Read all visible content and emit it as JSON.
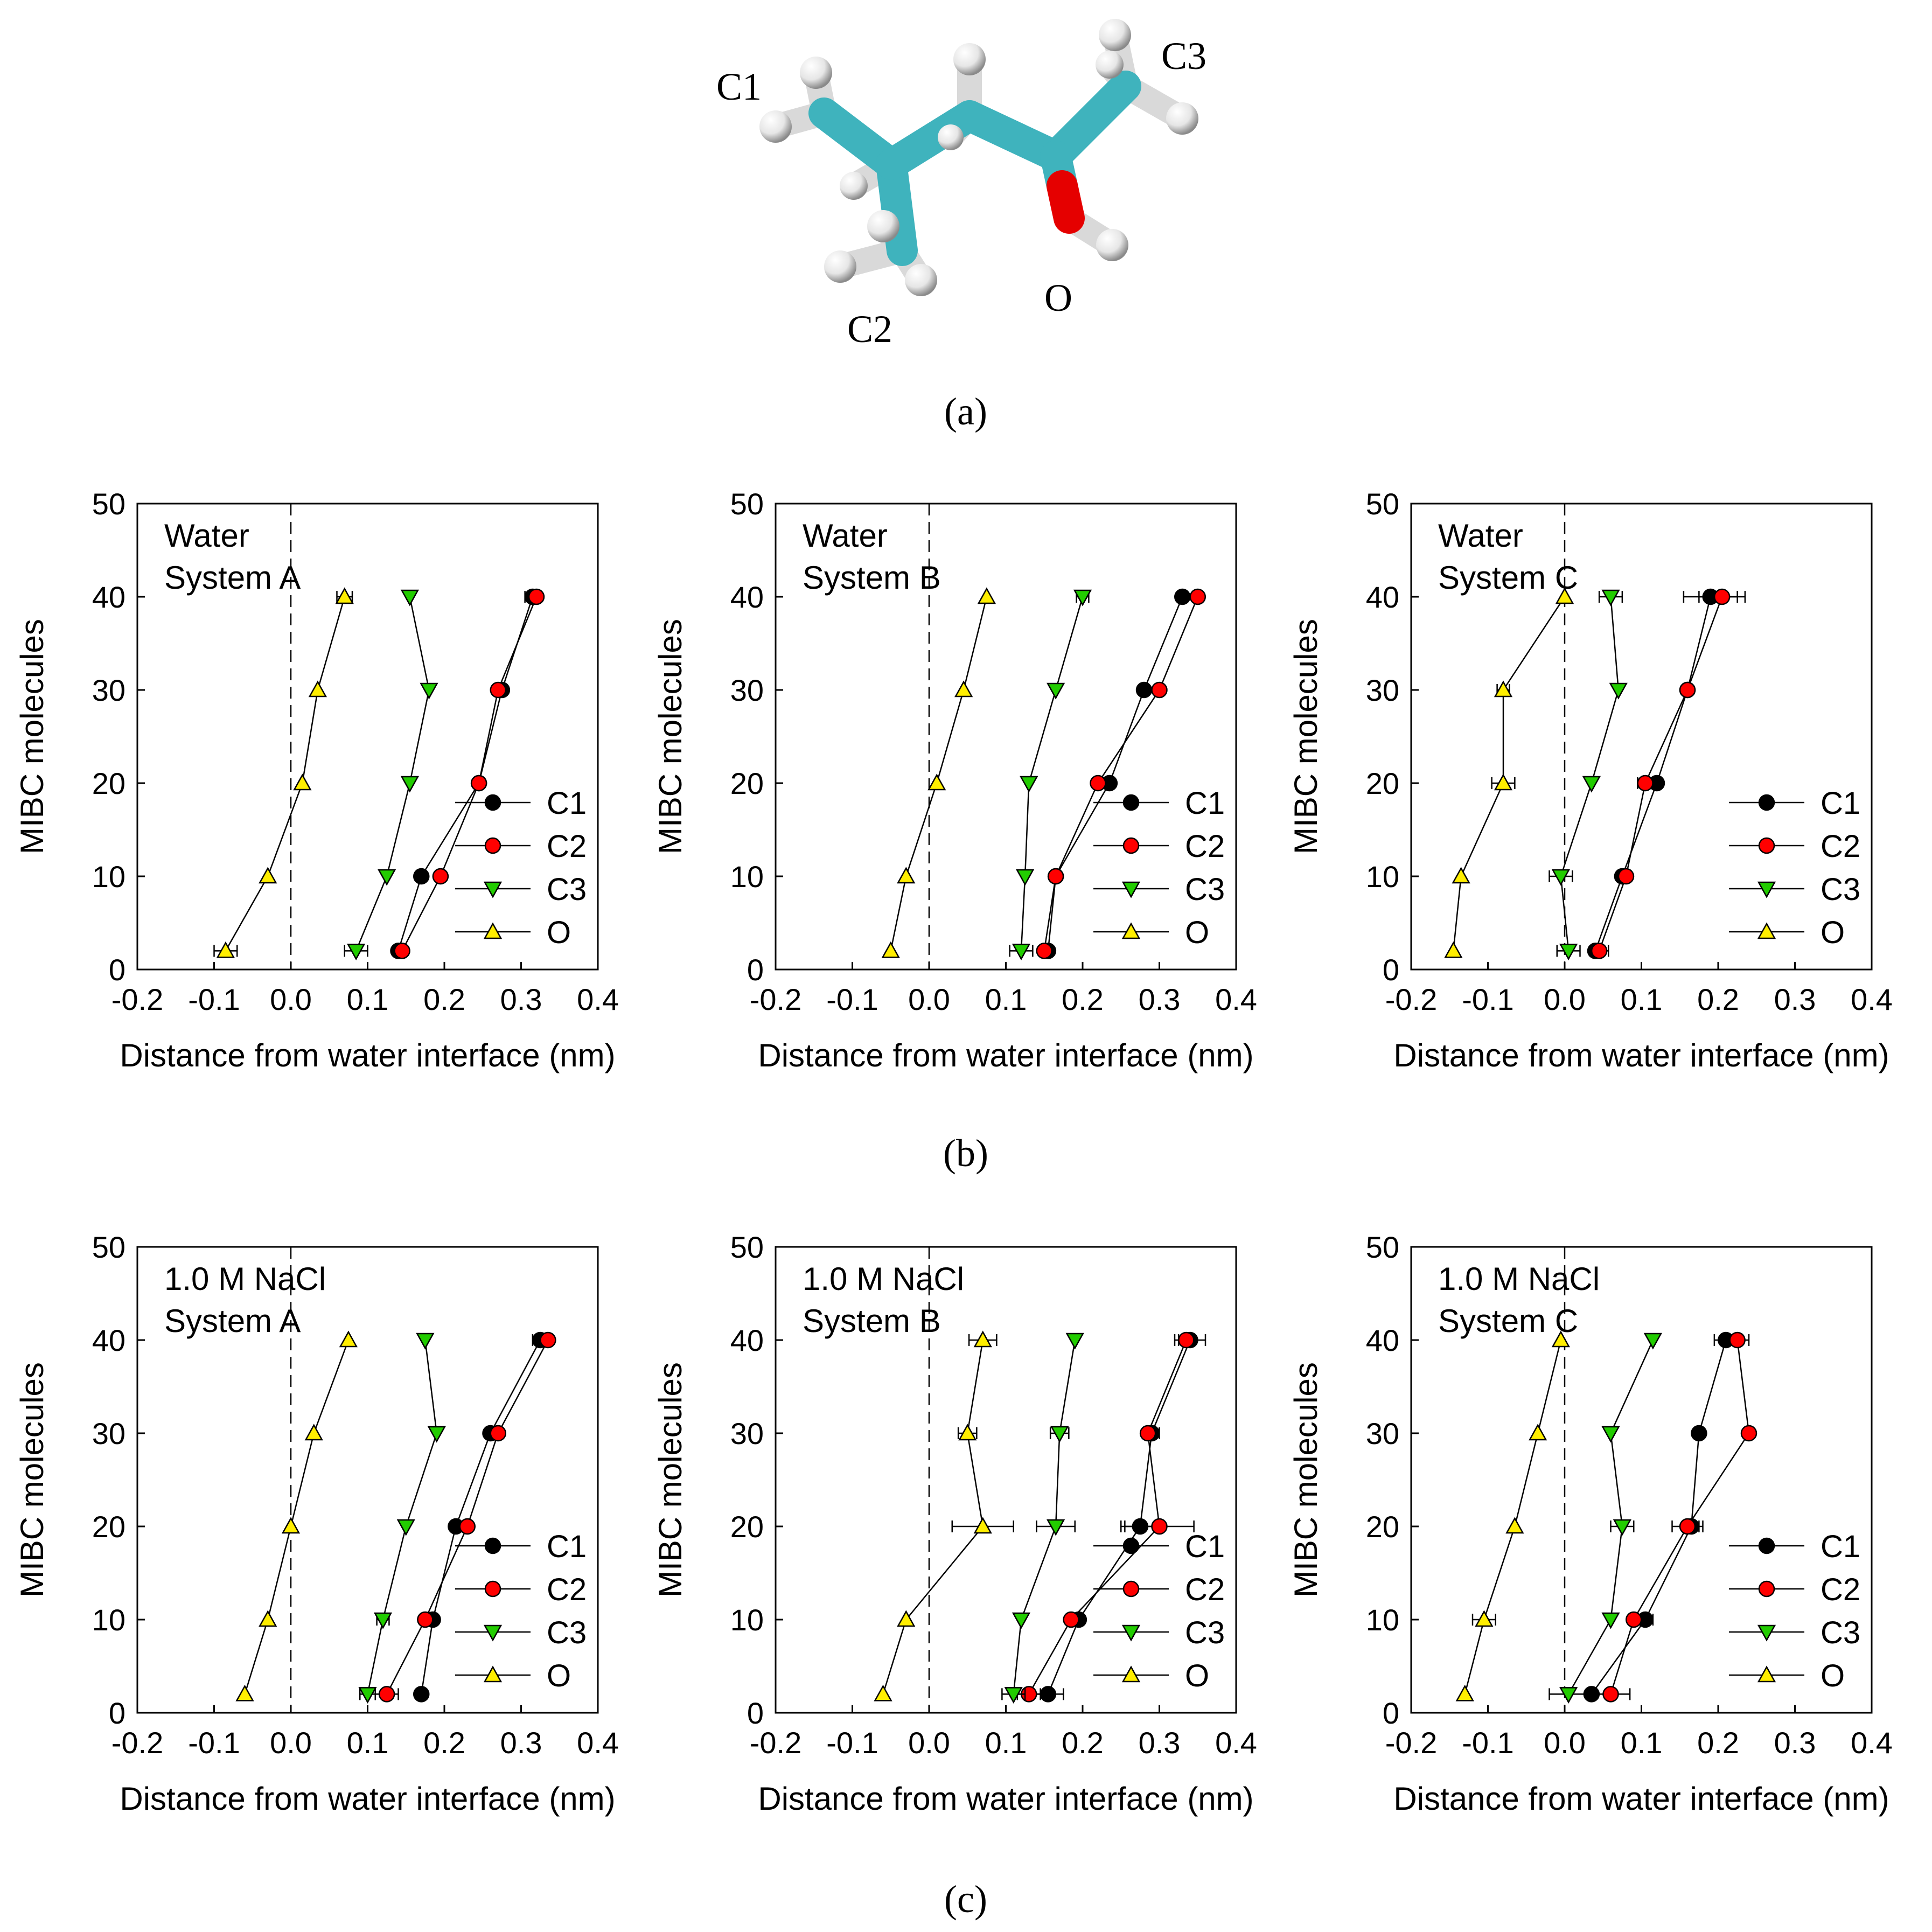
{
  "molecule": {
    "labels": [
      "C1",
      "C2",
      "C3",
      "O"
    ]
  },
  "captions": [
    "(a)",
    "(b)",
    "(c)"
  ],
  "legend": [
    "C1",
    "C2",
    "C3",
    "O"
  ],
  "colors": {
    "C1": "#000000",
    "C2": "#ff0000",
    "C3": "#22cc00",
    "O": "#ffee00",
    "carbon": "#3fb3bd",
    "hydrogen": "#e6e6e6",
    "oxygen": "#e50000"
  },
  "chart_data": [
    {
      "type": "line",
      "panel": "b",
      "annotation": [
        "Water",
        "System A"
      ],
      "xlabel": "Distance from water interface (nm)",
      "ylabel": "MIBC molecules",
      "xlim": [
        -0.2,
        0.4
      ],
      "ylim": [
        0,
        50
      ],
      "xticks": [
        "-0.2",
        "-0.1",
        "0.0",
        "0.1",
        "0.2",
        "0.3",
        "0.4"
      ],
      "yticks": [
        "0",
        "10",
        "20",
        "30",
        "40",
        "50"
      ],
      "series": [
        {
          "name": "C1",
          "points": [
            [
              0.14,
              2
            ],
            [
              0.17,
              10
            ],
            [
              0.245,
              20
            ],
            [
              0.275,
              30
            ],
            [
              0.315,
              40
            ]
          ],
          "err": [
            0,
            0,
            0,
            0,
            0.01
          ]
        },
        {
          "name": "C2",
          "points": [
            [
              0.145,
              2
            ],
            [
              0.195,
              10
            ],
            [
              0.245,
              20
            ],
            [
              0.27,
              30
            ],
            [
              0.32,
              40
            ]
          ],
          "err": [
            0,
            0,
            0,
            0,
            0
          ]
        },
        {
          "name": "C3",
          "points": [
            [
              0.085,
              2
            ],
            [
              0.125,
              10
            ],
            [
              0.155,
              20
            ],
            [
              0.18,
              30
            ],
            [
              0.155,
              40
            ]
          ],
          "err": [
            0.015,
            0,
            0,
            0,
            0
          ]
        },
        {
          "name": "O",
          "points": [
            [
              -0.085,
              2
            ],
            [
              -0.03,
              10
            ],
            [
              0.015,
              20
            ],
            [
              0.035,
              30
            ],
            [
              0.07,
              40
            ]
          ],
          "err": [
            0.015,
            0,
            0,
            0,
            0.01
          ]
        }
      ]
    },
    {
      "type": "line",
      "panel": "b",
      "annotation": [
        "Water",
        "System B"
      ],
      "xlabel": "Distance from water interface (nm)",
      "ylabel": "MIBC molecules",
      "xlim": [
        -0.2,
        0.4
      ],
      "ylim": [
        0,
        50
      ],
      "xticks": [
        "-0.2",
        "-0.1",
        "0.0",
        "0.1",
        "0.2",
        "0.3",
        "0.4"
      ],
      "yticks": [
        "0",
        "10",
        "20",
        "30",
        "40",
        "50"
      ],
      "series": [
        {
          "name": "C1",
          "points": [
            [
              0.155,
              2
            ],
            [
              0.165,
              10
            ],
            [
              0.235,
              20
            ],
            [
              0.28,
              30
            ],
            [
              0.33,
              40
            ]
          ],
          "err": [
            0,
            0,
            0,
            0,
            0
          ]
        },
        {
          "name": "C2",
          "points": [
            [
              0.15,
              2
            ],
            [
              0.165,
              10
            ],
            [
              0.22,
              20
            ],
            [
              0.3,
              30
            ],
            [
              0.35,
              40
            ]
          ],
          "err": [
            0,
            0,
            0,
            0,
            0
          ]
        },
        {
          "name": "C3",
          "points": [
            [
              0.12,
              2
            ],
            [
              0.125,
              10
            ],
            [
              0.13,
              20
            ],
            [
              0.165,
              30
            ],
            [
              0.2,
              40
            ]
          ],
          "err": [
            0.015,
            0,
            0,
            0,
            0.008
          ]
        },
        {
          "name": "O",
          "points": [
            [
              -0.05,
              2
            ],
            [
              -0.03,
              10
            ],
            [
              0.01,
              20
            ],
            [
              0.045,
              30
            ],
            [
              0.075,
              40
            ]
          ],
          "err": [
            0,
            0,
            0,
            0,
            0
          ]
        }
      ]
    },
    {
      "type": "line",
      "panel": "b",
      "annotation": [
        "Water",
        "System C"
      ],
      "xlabel": "Distance from water interface (nm)",
      "ylabel": "MIBC molecules",
      "xlim": [
        -0.2,
        0.4
      ],
      "ylim": [
        0,
        50
      ],
      "xticks": [
        "-0.2",
        "-0.1",
        "0.0",
        "0.1",
        "0.2",
        "0.3",
        "0.4"
      ],
      "yticks": [
        "0",
        "10",
        "20",
        "30",
        "40",
        "50"
      ],
      "series": [
        {
          "name": "C1",
          "points": [
            [
              0.04,
              2
            ],
            [
              0.075,
              10
            ],
            [
              0.12,
              20
            ],
            [
              0.16,
              30
            ],
            [
              0.19,
              40
            ]
          ],
          "err": [
            0,
            0,
            0,
            0,
            0.035
          ]
        },
        {
          "name": "C2",
          "points": [
            [
              0.045,
              2
            ],
            [
              0.08,
              10
            ],
            [
              0.105,
              20
            ],
            [
              0.16,
              30
            ],
            [
              0.205,
              40
            ]
          ],
          "err": [
            0.012,
            0,
            0.01,
            0,
            0.03
          ]
        },
        {
          "name": "C3",
          "points": [
            [
              0.005,
              2
            ],
            [
              -0.005,
              10
            ],
            [
              0.035,
              20
            ],
            [
              0.07,
              30
            ],
            [
              0.06,
              40
            ]
          ],
          "err": [
            0.015,
            0.015,
            0,
            0,
            0.015
          ]
        },
        {
          "name": "O",
          "points": [
            [
              -0.145,
              2
            ],
            [
              -0.135,
              10
            ],
            [
              -0.08,
              20
            ],
            [
              -0.08,
              30
            ],
            [
              0.0,
              40
            ]
          ],
          "err": [
            0,
            0,
            0.015,
            0.008,
            0
          ]
        }
      ]
    },
    {
      "type": "line",
      "panel": "c",
      "annotation": [
        "1.0 M NaCl",
        "System A"
      ],
      "xlabel": "Distance from water interface (nm)",
      "ylabel": "MIBC molecules",
      "xlim": [
        -0.2,
        0.4
      ],
      "ylim": [
        0,
        50
      ],
      "xticks": [
        "-0.2",
        "-0.1",
        "0.0",
        "0.1",
        "0.2",
        "0.3",
        "0.4"
      ],
      "yticks": [
        "0",
        "10",
        "20",
        "30",
        "40",
        "50"
      ],
      "series": [
        {
          "name": "C1",
          "points": [
            [
              0.17,
              2
            ],
            [
              0.185,
              10
            ],
            [
              0.215,
              20
            ],
            [
              0.26,
              30
            ],
            [
              0.325,
              40
            ]
          ],
          "err": [
            0,
            0,
            0,
            0,
            0.01
          ]
        },
        {
          "name": "C2",
          "points": [
            [
              0.125,
              2
            ],
            [
              0.175,
              10
            ],
            [
              0.23,
              20
            ],
            [
              0.27,
              30
            ],
            [
              0.335,
              40
            ]
          ],
          "err": [
            0.015,
            0,
            0,
            0,
            0
          ]
        },
        {
          "name": "C3",
          "points": [
            [
              0.1,
              2
            ],
            [
              0.12,
              10
            ],
            [
              0.15,
              20
            ],
            [
              0.19,
              30
            ],
            [
              0.175,
              40
            ]
          ],
          "err": [
            0.01,
            0.008,
            0,
            0,
            0
          ]
        },
        {
          "name": "O",
          "points": [
            [
              -0.06,
              2
            ],
            [
              -0.03,
              10
            ],
            [
              0.0,
              20
            ],
            [
              0.03,
              30
            ],
            [
              0.075,
              40
            ]
          ],
          "err": [
            0,
            0,
            0,
            0,
            0
          ]
        }
      ]
    },
    {
      "type": "line",
      "panel": "c",
      "annotation": [
        "1.0 M NaCl",
        "System B"
      ],
      "xlabel": "Distance from water interface (nm)",
      "ylabel": "MIBC molecules",
      "xlim": [
        -0.2,
        0.4
      ],
      "ylim": [
        0,
        50
      ],
      "xticks": [
        "-0.2",
        "-0.1",
        "0.0",
        "0.1",
        "0.2",
        "0.3",
        "0.4"
      ],
      "yticks": [
        "0",
        "10",
        "20",
        "30",
        "40",
        "50"
      ],
      "series": [
        {
          "name": "C1",
          "points": [
            [
              0.155,
              2
            ],
            [
              0.195,
              10
            ],
            [
              0.275,
              20
            ],
            [
              0.29,
              30
            ],
            [
              0.34,
              40
            ]
          ],
          "err": [
            0.02,
            0,
            0.025,
            0.01,
            0.02
          ]
        },
        {
          "name": "C2",
          "points": [
            [
              0.13,
              2
            ],
            [
              0.185,
              10
            ],
            [
              0.3,
              20
            ],
            [
              0.285,
              30
            ],
            [
              0.335,
              40
            ]
          ],
          "err": [
            0.015,
            0,
            0.045,
            0,
            0.01
          ]
        },
        {
          "name": "C3",
          "points": [
            [
              0.11,
              2
            ],
            [
              0.12,
              10
            ],
            [
              0.165,
              20
            ],
            [
              0.17,
              30
            ],
            [
              0.19,
              40
            ]
          ],
          "err": [
            0.015,
            0,
            0.025,
            0.012,
            0
          ]
        },
        {
          "name": "O",
          "points": [
            [
              -0.06,
              2
            ],
            [
              -0.03,
              10
            ],
            [
              0.07,
              20
            ],
            [
              0.05,
              30
            ],
            [
              0.07,
              40
            ]
          ],
          "err": [
            0,
            0,
            0.04,
            0.012,
            0.018
          ]
        }
      ]
    },
    {
      "type": "line",
      "panel": "c",
      "annotation": [
        "1.0 M NaCl",
        "System C"
      ],
      "xlabel": "Distance from water interface (nm)",
      "ylabel": "MIBC molecules",
      "xlim": [
        -0.2,
        0.4
      ],
      "ylim": [
        0,
        50
      ],
      "xticks": [
        "-0.2",
        "-0.1",
        "0.0",
        "0.1",
        "0.2",
        "0.3",
        "0.4"
      ],
      "yticks": [
        "0",
        "10",
        "20",
        "30",
        "40",
        "50"
      ],
      "series": [
        {
          "name": "C1",
          "points": [
            [
              0.035,
              2
            ],
            [
              0.105,
              10
            ],
            [
              0.165,
              20
            ],
            [
              0.175,
              30
            ],
            [
              0.21,
              40
            ]
          ],
          "err": [
            0,
            0.01,
            0.01,
            0,
            0.015
          ]
        },
        {
          "name": "C2",
          "points": [
            [
              0.06,
              2
            ],
            [
              0.09,
              10
            ],
            [
              0.16,
              20
            ],
            [
              0.24,
              30
            ],
            [
              0.225,
              40
            ]
          ],
          "err": [
            0.025,
            0,
            0.02,
            0,
            0.015
          ]
        },
        {
          "name": "C3",
          "points": [
            [
              0.005,
              2
            ],
            [
              0.06,
              10
            ],
            [
              0.075,
              20
            ],
            [
              0.06,
              30
            ],
            [
              0.115,
              40
            ]
          ],
          "err": [
            0.025,
            0,
            0.015,
            0,
            0
          ]
        },
        {
          "name": "O",
          "points": [
            [
              -0.13,
              2
            ],
            [
              -0.105,
              10
            ],
            [
              -0.065,
              20
            ],
            [
              -0.035,
              30
            ],
            [
              -0.005,
              40
            ]
          ],
          "err": [
            0,
            0.015,
            0,
            0,
            0
          ]
        }
      ]
    }
  ]
}
